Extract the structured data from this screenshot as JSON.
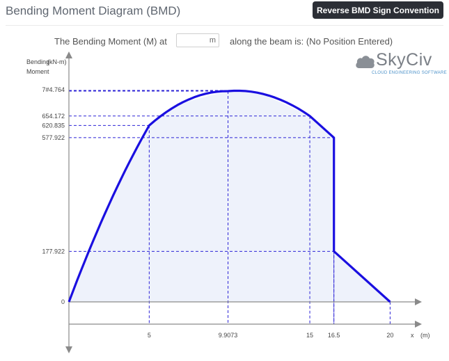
{
  "header": {
    "title": "Bending Moment Diagram (BMD)",
    "reverse_button": "Reverse BMD Sign Convention"
  },
  "query": {
    "prefix": "The Bending Moment (M) at",
    "unit": "m",
    "suffix": "along the beam is: (No Position Entered)"
  },
  "logo": {
    "word": "SkyCiv",
    "tagline": "CLOUD ENGINEERING SOFTWARE"
  },
  "colors": {
    "curve": "#1a0fe0",
    "fill": "#eef2fb",
    "guide": "#2b22d6",
    "axis": "#8a8a8a"
  },
  "chart_data": {
    "type": "area",
    "ylabel": "Bending Moment",
    "yunit": "(kN-m)",
    "xlabel": "x",
    "xunit": "(m)",
    "xlim": [
      0,
      20
    ],
    "ylim": [
      0,
      741.764
    ],
    "y_tick_labels": [
      "7#4.764",
      "654.172",
      "620.835",
      "577.922",
      "177.922",
      "0"
    ],
    "x_tick_labels": [
      "5",
      "9.9073",
      "15",
      "16.5",
      "20"
    ],
    "points": [
      {
        "x": 0,
        "y": 0
      },
      {
        "x": 2.5,
        "y": 343
      },
      {
        "x": 5,
        "y": 620.835
      },
      {
        "x": 7,
        "y": 700
      },
      {
        "x": 9.9073,
        "y": 741.764
      },
      {
        "x": 12,
        "y": 733
      },
      {
        "x": 15,
        "y": 654.172
      },
      {
        "x": 16.5,
        "y": 577.922
      },
      {
        "x": 16.5,
        "y": 177.922
      },
      {
        "x": 20,
        "y": 0
      }
    ],
    "markers": [
      {
        "x": 5,
        "y": 620.835
      },
      {
        "x": 9.9073,
        "y": 741.764
      },
      {
        "x": 15,
        "y": 654.172
      },
      {
        "x": 16.5,
        "y": 577.922
      },
      {
        "x": 16.5,
        "y": 177.922
      },
      {
        "x": 20,
        "y": 0
      }
    ]
  }
}
